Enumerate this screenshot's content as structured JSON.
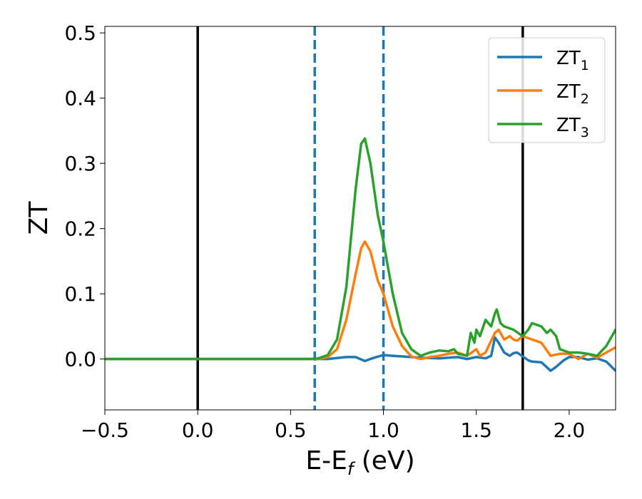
{
  "chart_data": {
    "type": "line",
    "xlabel": "E-E",
    "xlabel_sub": "f",
    "xlabel_unit": " (eV)",
    "ylabel": "ZT",
    "xlim": [
      -0.5,
      2.25
    ],
    "ylim": [
      -0.078,
      0.51
    ],
    "xticks": [
      -0.5,
      0.0,
      0.5,
      1.0,
      1.5,
      2.0
    ],
    "xtick_labels": [
      "−0.5",
      "0.0",
      "0.5",
      "1.0",
      "1.5",
      "2.0"
    ],
    "yticks": [
      0.0,
      0.1,
      0.2,
      0.3,
      0.4,
      0.5
    ],
    "ytick_labels": [
      "0.0",
      "0.1",
      "0.2",
      "0.3",
      "0.4",
      "0.5"
    ],
    "legend_position": "top-right",
    "vlines": [
      {
        "x": 0.0,
        "style": "solid",
        "color": "#000000"
      },
      {
        "x": 1.75,
        "style": "solid",
        "color": "#000000"
      },
      {
        "x": 0.63,
        "style": "dashed",
        "color": "#1f77b4"
      },
      {
        "x": 1.0,
        "style": "dashed",
        "color": "#1f77b4"
      }
    ],
    "series": [
      {
        "name": "ZT",
        "name_sub": "1",
        "color": "#1f77b4",
        "points": [
          [
            -0.5,
            0
          ],
          [
            0.6,
            0
          ],
          [
            0.7,
            0
          ],
          [
            0.8,
            0.003
          ],
          [
            0.85,
            0.003
          ],
          [
            0.9,
            -0.003
          ],
          [
            0.95,
            0.002
          ],
          [
            1.0,
            0.006
          ],
          [
            1.05,
            0.005
          ],
          [
            1.1,
            0.004
          ],
          [
            1.2,
            0.002
          ],
          [
            1.3,
            0.001
          ],
          [
            1.4,
            0.003
          ],
          [
            1.45,
            0.0
          ],
          [
            1.5,
            0.003
          ],
          [
            1.55,
            0.001
          ],
          [
            1.58,
            0.005
          ],
          [
            1.6,
            0.033
          ],
          [
            1.62,
            0.025
          ],
          [
            1.65,
            0.01
          ],
          [
            1.68,
            0.005
          ],
          [
            1.7,
            0.009
          ],
          [
            1.72,
            0.01
          ],
          [
            1.75,
            0.004
          ],
          [
            1.78,
            -0.002
          ],
          [
            1.8,
            -0.004
          ],
          [
            1.85,
            -0.005
          ],
          [
            1.9,
            -0.018
          ],
          [
            1.93,
            -0.012
          ],
          [
            1.97,
            -0.002
          ],
          [
            2.0,
            0.003
          ],
          [
            2.05,
            0.003
          ],
          [
            2.1,
            -0.001
          ],
          [
            2.15,
            0.001
          ],
          [
            2.2,
            -0.004
          ],
          [
            2.25,
            -0.018
          ]
        ]
      },
      {
        "name": "ZT",
        "name_sub": "2",
        "color": "#ff7f0e",
        "points": [
          [
            -0.5,
            0
          ],
          [
            0.6,
            0
          ],
          [
            0.65,
            0.0
          ],
          [
            0.7,
            0.003
          ],
          [
            0.75,
            0.015
          ],
          [
            0.8,
            0.06
          ],
          [
            0.85,
            0.13
          ],
          [
            0.88,
            0.17
          ],
          [
            0.9,
            0.18
          ],
          [
            0.93,
            0.165
          ],
          [
            0.97,
            0.12
          ],
          [
            1.0,
            0.1
          ],
          [
            1.05,
            0.05
          ],
          [
            1.1,
            0.02
          ],
          [
            1.15,
            0.004
          ],
          [
            1.2,
            0.0
          ],
          [
            1.25,
            0.003
          ],
          [
            1.3,
            0.005
          ],
          [
            1.35,
            0.008
          ],
          [
            1.4,
            0.01
          ],
          [
            1.45,
            0.005
          ],
          [
            1.5,
            0.015
          ],
          [
            1.52,
            0.005
          ],
          [
            1.55,
            0.01
          ],
          [
            1.6,
            0.04
          ],
          [
            1.62,
            0.045
          ],
          [
            1.65,
            0.03
          ],
          [
            1.68,
            0.035
          ],
          [
            1.7,
            0.03
          ],
          [
            1.72,
            0.028
          ],
          [
            1.75,
            0.035
          ],
          [
            1.8,
            0.03
          ],
          [
            1.85,
            0.025
          ],
          [
            1.9,
            0.005
          ],
          [
            1.95,
            0.008
          ],
          [
            2.0,
            0.008
          ],
          [
            2.05,
            0.0
          ],
          [
            2.1,
            0.008
          ],
          [
            2.15,
            0.002
          ],
          [
            2.2,
            0.01
          ],
          [
            2.25,
            0.018
          ]
        ]
      },
      {
        "name": "ZT",
        "name_sub": "3",
        "color": "#2ca02c",
        "points": [
          [
            -0.5,
            0
          ],
          [
            0.6,
            0
          ],
          [
            0.65,
            0.001
          ],
          [
            0.7,
            0.006
          ],
          [
            0.75,
            0.03
          ],
          [
            0.8,
            0.11
          ],
          [
            0.85,
            0.26
          ],
          [
            0.88,
            0.33
          ],
          [
            0.9,
            0.338
          ],
          [
            0.93,
            0.3
          ],
          [
            0.97,
            0.22
          ],
          [
            1.0,
            0.18
          ],
          [
            1.05,
            0.1
          ],
          [
            1.1,
            0.04
          ],
          [
            1.15,
            0.015
          ],
          [
            1.2,
            0.005
          ],
          [
            1.25,
            0.01
          ],
          [
            1.3,
            0.013
          ],
          [
            1.35,
            0.012
          ],
          [
            1.38,
            0.015
          ],
          [
            1.4,
            0.008
          ],
          [
            1.45,
            0.005
          ],
          [
            1.47,
            0.04
          ],
          [
            1.49,
            0.025
          ],
          [
            1.5,
            0.045
          ],
          [
            1.52,
            0.035
          ],
          [
            1.55,
            0.06
          ],
          [
            1.58,
            0.05
          ],
          [
            1.6,
            0.07
          ],
          [
            1.61,
            0.076
          ],
          [
            1.63,
            0.055
          ],
          [
            1.65,
            0.05
          ],
          [
            1.7,
            0.045
          ],
          [
            1.75,
            0.035
          ],
          [
            1.78,
            0.045
          ],
          [
            1.8,
            0.055
          ],
          [
            1.85,
            0.05
          ],
          [
            1.88,
            0.04
          ],
          [
            1.9,
            0.045
          ],
          [
            1.93,
            0.035
          ],
          [
            1.95,
            0.015
          ],
          [
            2.0,
            0.01
          ],
          [
            2.05,
            0.01
          ],
          [
            2.1,
            0.008
          ],
          [
            2.15,
            0.005
          ],
          [
            2.2,
            0.02
          ],
          [
            2.25,
            0.045
          ]
        ]
      }
    ]
  }
}
